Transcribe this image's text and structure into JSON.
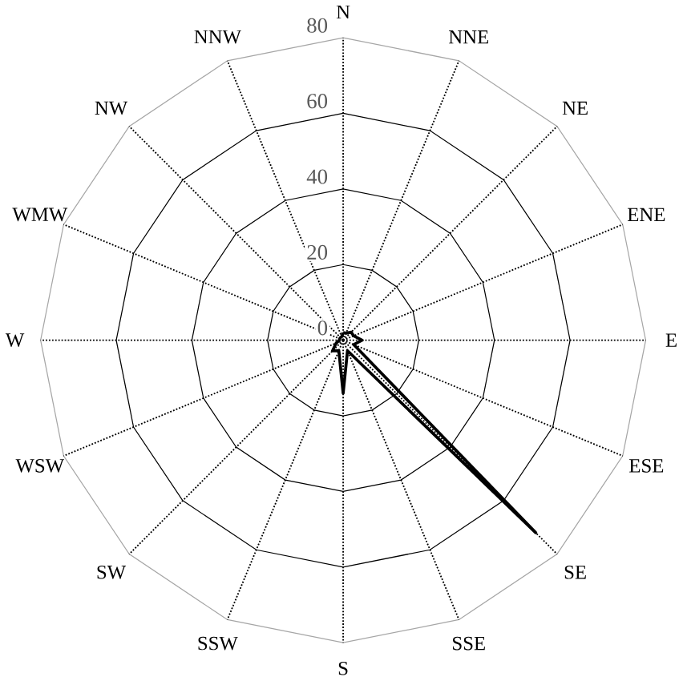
{
  "chart_data": {
    "type": "radar",
    "categories": [
      "N",
      "NNE",
      "NE",
      "ENE",
      "E",
      "ESE",
      "SE",
      "SSE",
      "S",
      "SSW",
      "SW",
      "WSW",
      "W",
      "WMW",
      "NW",
      "NNW"
    ],
    "series": [
      {
        "color": "#000000",
        "values": [
          2,
          2,
          3,
          3,
          5,
          3,
          72,
          3,
          14,
          3,
          4,
          2,
          1,
          1,
          1,
          1
        ]
      }
    ],
    "ylim": [
      0,
      80
    ],
    "yticks": [
      0,
      20,
      40,
      60,
      80
    ],
    "grid": true
  }
}
